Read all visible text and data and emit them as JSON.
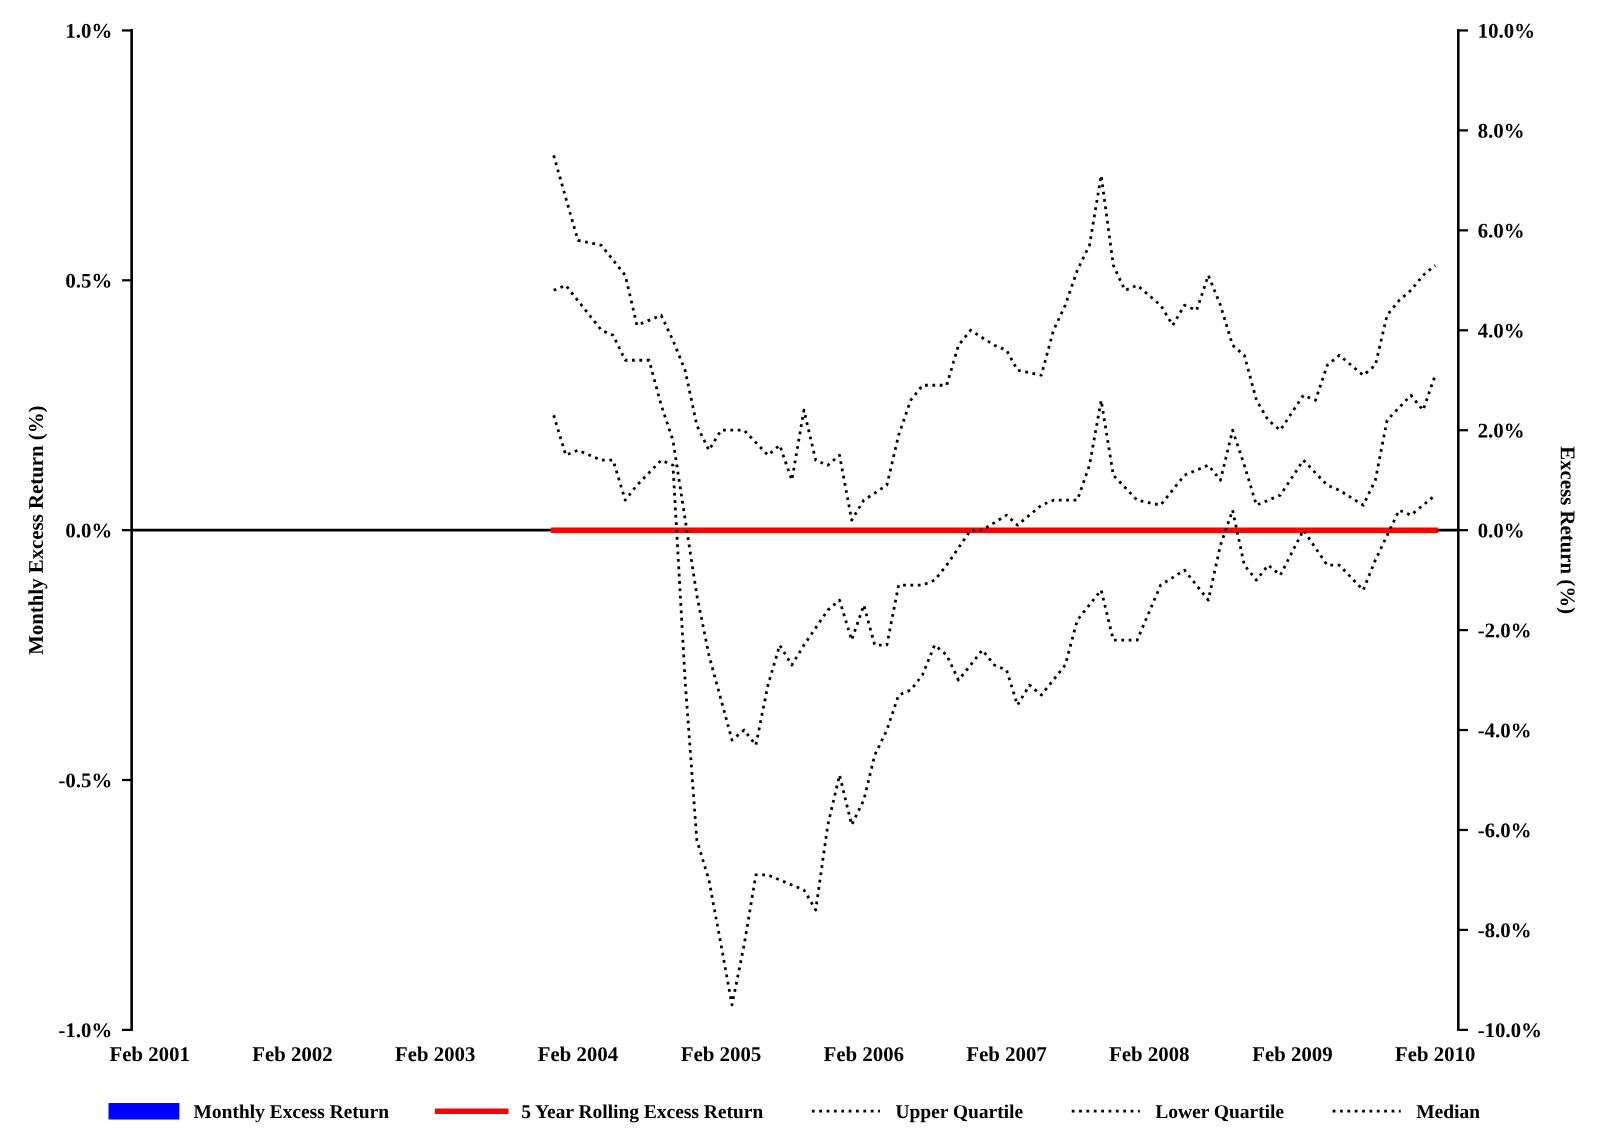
{
  "chart_data": {
    "type": "line",
    "ylabel": "Monthly Excess Return (%)",
    "y2label": "Excess Return (%)",
    "xlim": [
      "2000-12-17",
      "2010-04-01"
    ],
    "xticks": [
      {
        "value": "2001-02",
        "label": "Feb 2001"
      },
      {
        "value": "2002-02",
        "label": "Feb 2002"
      },
      {
        "value": "2003-02",
        "label": "Feb 2003"
      },
      {
        "value": "2004-02",
        "label": "Feb 2004"
      },
      {
        "value": "2005-02",
        "label": "Feb 2005"
      },
      {
        "value": "2006-02",
        "label": "Feb 2006"
      },
      {
        "value": "2007-02",
        "label": "Feb 2007"
      },
      {
        "value": "2008-02",
        "label": "Feb 2008"
      },
      {
        "value": "2009-02",
        "label": "Feb 2009"
      },
      {
        "value": "2010-02",
        "label": "Feb 2010"
      }
    ],
    "ylim": [
      -1,
      1
    ],
    "yticks": [
      {
        "value": -1,
        "label": "-1.0%"
      },
      {
        "value": -0.5,
        "label": "-0.5%"
      },
      {
        "value": 0,
        "label": "0.0%"
      },
      {
        "value": 0.5,
        "label": "0.5%"
      },
      {
        "value": 1,
        "label": "1.0%"
      }
    ],
    "y2lim": [
      -10,
      10
    ],
    "y2ticks": [
      {
        "value": -10,
        "label": "-10.0%"
      },
      {
        "value": -8,
        "label": "-8.0%"
      },
      {
        "value": -6,
        "label": "-6.0%"
      },
      {
        "value": -4,
        "label": "-4.0%"
      },
      {
        "value": -2,
        "label": "-2.0%"
      },
      {
        "value": 0,
        "label": "0.0%"
      },
      {
        "value": 2,
        "label": "2.0%"
      },
      {
        "value": 4,
        "label": "4.0%"
      },
      {
        "value": 6,
        "label": "6.0%"
      },
      {
        "value": 8,
        "label": "8.0%"
      },
      {
        "value": 10,
        "label": "10.0%"
      }
    ],
    "ref_lines": [
      {
        "axis": "y",
        "value": 0,
        "color": "#000000"
      }
    ],
    "grid": false,
    "legend": "bottom",
    "marker": "none",
    "series": [
      {
        "name": "Monthly Excess Return",
        "type": "bar",
        "color": "#0000ff"
      },
      {
        "name": "5 Year Rolling Excess Return",
        "axis": "y2",
        "color": "#ff0000",
        "line_style": "solid",
        "x": [
          "2003-12",
          "2010-02"
        ],
        "values": [
          0,
          0
        ]
      },
      {
        "name": "Upper Quartile",
        "axis": "y2",
        "color": "#000000",
        "line_style": "dotted",
        "x": [
          "2003-12",
          "2004-02",
          "2004-04",
          "2004-06",
          "2004-07",
          "2004-09",
          "2004-10",
          "2004-11",
          "2004-12",
          "2005-01",
          "2005-02",
          "2005-04",
          "2005-06",
          "2005-07",
          "2005-08",
          "2005-09",
          "2005-10",
          "2005-11",
          "2005-12",
          "2006-01",
          "2006-02",
          "2006-04",
          "2006-05",
          "2006-06",
          "2006-07",
          "2006-09",
          "2006-10",
          "2006-11",
          "2007-01",
          "2007-02",
          "2007-03",
          "2007-05",
          "2007-06",
          "2007-07",
          "2007-08",
          "2007-09",
          "2007-10",
          "2007-11",
          "2007-12",
          "2008-01",
          "2008-03",
          "2008-04",
          "2008-05",
          "2008-06",
          "2008-07",
          "2008-08",
          "2008-09",
          "2008-10",
          "2008-11",
          "2008-12",
          "2009-01",
          "2009-03",
          "2009-04",
          "2009-05",
          "2009-06",
          "2009-08",
          "2009-09",
          "2009-10",
          "2009-11",
          "2009-12",
          "2010-01",
          "2010-02"
        ],
        "values": [
          7.5,
          5.8,
          5.7,
          5.1,
          4.1,
          4.3,
          3.8,
          3.2,
          2.1,
          1.6,
          2.0,
          2.0,
          1.5,
          1.7,
          1.0,
          2.4,
          1.4,
          1.3,
          1.5,
          0.2,
          0.6,
          0.9,
          1.9,
          2.6,
          2.9,
          2.9,
          3.7,
          4.0,
          3.7,
          3.6,
          3.2,
          3.1,
          4.0,
          4.5,
          5.2,
          5.7,
          7.1,
          5.3,
          4.8,
          4.9,
          4.5,
          4.1,
          4.5,
          4.4,
          5.1,
          4.5,
          3.7,
          3.5,
          2.6,
          2.2,
          2.0,
          2.7,
          2.6,
          3.3,
          3.5,
          3.1,
          3.3,
          4.3,
          4.6,
          4.8,
          5.1,
          5.3
        ]
      },
      {
        "name": "Lower Quartile",
        "axis": "y2",
        "color": "#000000",
        "line_style": "dotted",
        "x": [
          "2003-12",
          "2004-01",
          "2004-02",
          "2004-04",
          "2004-05",
          "2004-06",
          "2004-07",
          "2004-09",
          "2004-10",
          "2004-11",
          "2004-12",
          "2005-01",
          "2005-02",
          "2005-03",
          "2005-04",
          "2005-05",
          "2005-06",
          "2005-07",
          "2005-09",
          "2005-10",
          "2005-11",
          "2005-12",
          "2006-01",
          "2006-02",
          "2006-03",
          "2006-04",
          "2006-05",
          "2006-06",
          "2006-07",
          "2006-08",
          "2006-09",
          "2006-10",
          "2006-11",
          "2006-12",
          "2007-01",
          "2007-02",
          "2007-03",
          "2007-04",
          "2007-05",
          "2007-07",
          "2007-08",
          "2007-10",
          "2007-11",
          "2008-01",
          "2008-03",
          "2008-05",
          "2008-07",
          "2008-08",
          "2008-09",
          "2008-10",
          "2008-11",
          "2008-12",
          "2009-01",
          "2009-03",
          "2009-05",
          "2009-06",
          "2009-08",
          "2009-09",
          "2009-11",
          "2009-12",
          "2010-01",
          "2010-02"
        ],
        "values": [
          2.3,
          1.5,
          1.6,
          1.4,
          1.4,
          0.6,
          0.9,
          1.4,
          1.3,
          -3.0,
          -6.2,
          -7.0,
          -8.3,
          -9.5,
          -8.3,
          -6.9,
          -6.9,
          -7.0,
          -7.2,
          -7.6,
          -5.9,
          -4.9,
          -5.9,
          -5.4,
          -4.5,
          -4.0,
          -3.3,
          -3.2,
          -2.9,
          -2.3,
          -2.5,
          -3.0,
          -2.7,
          -2.4,
          -2.7,
          -2.8,
          -3.5,
          -3.1,
          -3.3,
          -2.7,
          -1.8,
          -1.2,
          -2.2,
          -2.2,
          -1.1,
          -0.8,
          -1.4,
          -0.3,
          0.4,
          -0.7,
          -1.0,
          -0.7,
          -0.9,
          0.0,
          -0.7,
          -0.7,
          -1.2,
          -0.6,
          0.4,
          0.3,
          0.5,
          0.7
        ]
      },
      {
        "name": "Median",
        "axis": "y2",
        "color": "#000000",
        "line_style": "dotted",
        "x": [
          "2003-12",
          "2004-01",
          "2004-04",
          "2004-05",
          "2004-06",
          "2004-08",
          "2004-09",
          "2004-10",
          "2004-12",
          "2005-01",
          "2005-03",
          "2005-04",
          "2005-05",
          "2005-06",
          "2005-07",
          "2005-08",
          "2005-09",
          "2005-11",
          "2005-12",
          "2006-01",
          "2006-02",
          "2006-03",
          "2006-04",
          "2006-05",
          "2006-07",
          "2006-08",
          "2006-09",
          "2006-11",
          "2006-12",
          "2007-02",
          "2007-03",
          "2007-05",
          "2007-06",
          "2007-08",
          "2007-09",
          "2007-10",
          "2007-11",
          "2008-01",
          "2008-03",
          "2008-05",
          "2008-07",
          "2008-08",
          "2008-09",
          "2008-10",
          "2008-11",
          "2009-01",
          "2009-03",
          "2009-05",
          "2009-06",
          "2009-08",
          "2009-09",
          "2009-10",
          "2009-12",
          "2010-01",
          "2010-02"
        ],
        "values": [
          4.8,
          4.9,
          4.0,
          3.9,
          3.4,
          3.4,
          2.5,
          1.8,
          -1.3,
          -2.5,
          -4.2,
          -4.0,
          -4.3,
          -3.1,
          -2.3,
          -2.7,
          -2.3,
          -1.6,
          -1.4,
          -2.2,
          -1.5,
          -2.3,
          -2.3,
          -1.1,
          -1.1,
          -1.0,
          -0.7,
          0.0,
          0.0,
          0.3,
          0.1,
          0.5,
          0.6,
          0.6,
          1.3,
          2.6,
          1.1,
          0.6,
          0.5,
          1.1,
          1.3,
          1.0,
          2.0,
          1.3,
          0.5,
          0.7,
          1.4,
          0.9,
          0.8,
          0.5,
          1.0,
          2.2,
          2.7,
          2.4,
          3.1
        ]
      }
    ]
  }
}
